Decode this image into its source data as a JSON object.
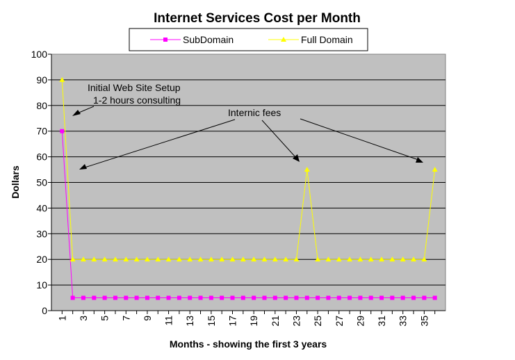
{
  "chart_data": {
    "type": "line",
    "title": "Internet Services Cost per Month",
    "xlabel": "Months - showing the first 3 years",
    "ylabel": "Dollars",
    "ylim": [
      0,
      100
    ],
    "yticks": [
      0,
      10,
      20,
      30,
      40,
      50,
      60,
      70,
      80,
      90,
      100
    ],
    "x": [
      1,
      2,
      3,
      4,
      5,
      6,
      7,
      8,
      9,
      10,
      11,
      12,
      13,
      14,
      15,
      16,
      17,
      18,
      19,
      20,
      21,
      22,
      23,
      24,
      25,
      26,
      27,
      28,
      29,
      30,
      31,
      32,
      33,
      34,
      35,
      36
    ],
    "xtick_labels": [
      "1",
      "3",
      "5",
      "7",
      "9",
      "11",
      "13",
      "15",
      "17",
      "19",
      "21",
      "23",
      "25",
      "27",
      "29",
      "31",
      "33",
      "35"
    ],
    "grid": "horizontal",
    "plot_background": "#c0c0c0",
    "legend_position": "top",
    "series": [
      {
        "name": "SubDomain",
        "color": "#ff00ff",
        "marker": "square",
        "values": [
          70,
          5,
          5,
          5,
          5,
          5,
          5,
          5,
          5,
          5,
          5,
          5,
          5,
          5,
          5,
          5,
          5,
          5,
          5,
          5,
          5,
          5,
          5,
          5,
          5,
          5,
          5,
          5,
          5,
          5,
          5,
          5,
          5,
          5,
          5,
          5
        ]
      },
      {
        "name": "Full Domain",
        "color": "#ffff00",
        "marker": "triangle",
        "values": [
          90,
          20,
          20,
          20,
          20,
          20,
          20,
          20,
          20,
          20,
          20,
          20,
          20,
          20,
          20,
          20,
          20,
          20,
          20,
          20,
          20,
          20,
          20,
          55,
          20,
          20,
          20,
          20,
          20,
          20,
          20,
          20,
          20,
          20,
          20,
          55
        ]
      }
    ],
    "annotations": [
      {
        "lines": [
          "Initial Web Site Setup",
          "1-2 hours consulting"
        ]
      },
      {
        "lines": [
          "Internic fees"
        ]
      }
    ]
  }
}
